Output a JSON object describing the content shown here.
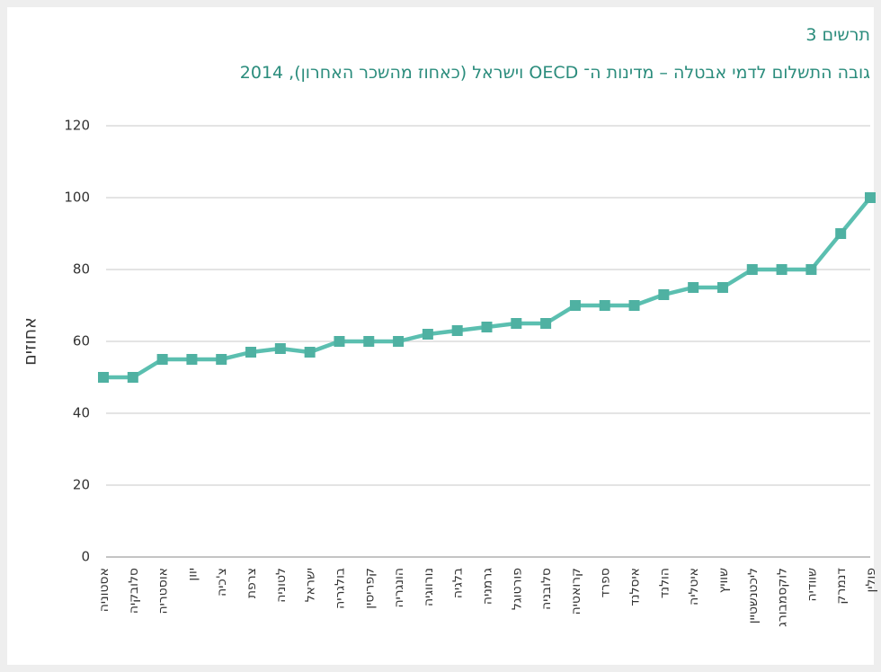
{
  "chart_data": {
    "type": "line",
    "subtitle": "תרשים 3",
    "title": "גובה התשלום לדמי אבטלה – מדינות ה־ OECD וישראל (כאחוז מהשכר האחרון), 2014",
    "y_label": "אחוזים",
    "categories": [
      "אסטוניה",
      "סלובקיה",
      "אוסטריה",
      "יוון",
      "צ'כיה",
      "צרפת",
      "לטוניה",
      "ישראל",
      "בולגריה",
      "קפריסין",
      "הונגריה",
      "נורווגיה",
      "בלגיה",
      "גרמניה",
      "פורטוגל",
      "סלובניה",
      "קרואטיה",
      "ספרד",
      "איסלנד",
      "הולנד",
      "איטליה",
      "שוויץ",
      "ליכטנשטיין",
      "לוקסמבורג",
      "שוודיה",
      "דנמרק",
      "פולין"
    ],
    "series": [
      {
        "name": "אחוזים",
        "color": "#5bbfb0",
        "values": [
          50,
          50,
          55,
          55,
          55,
          57,
          58,
          57,
          60,
          60,
          60,
          62,
          63,
          64,
          65,
          65,
          70,
          70,
          70,
          73,
          75,
          75,
          80,
          80,
          80,
          90,
          100
        ]
      }
    ],
    "ylim": [
      0,
      120
    ],
    "yticks": [
      0,
      20,
      40,
      60,
      80,
      100,
      120
    ],
    "grid": true
  }
}
